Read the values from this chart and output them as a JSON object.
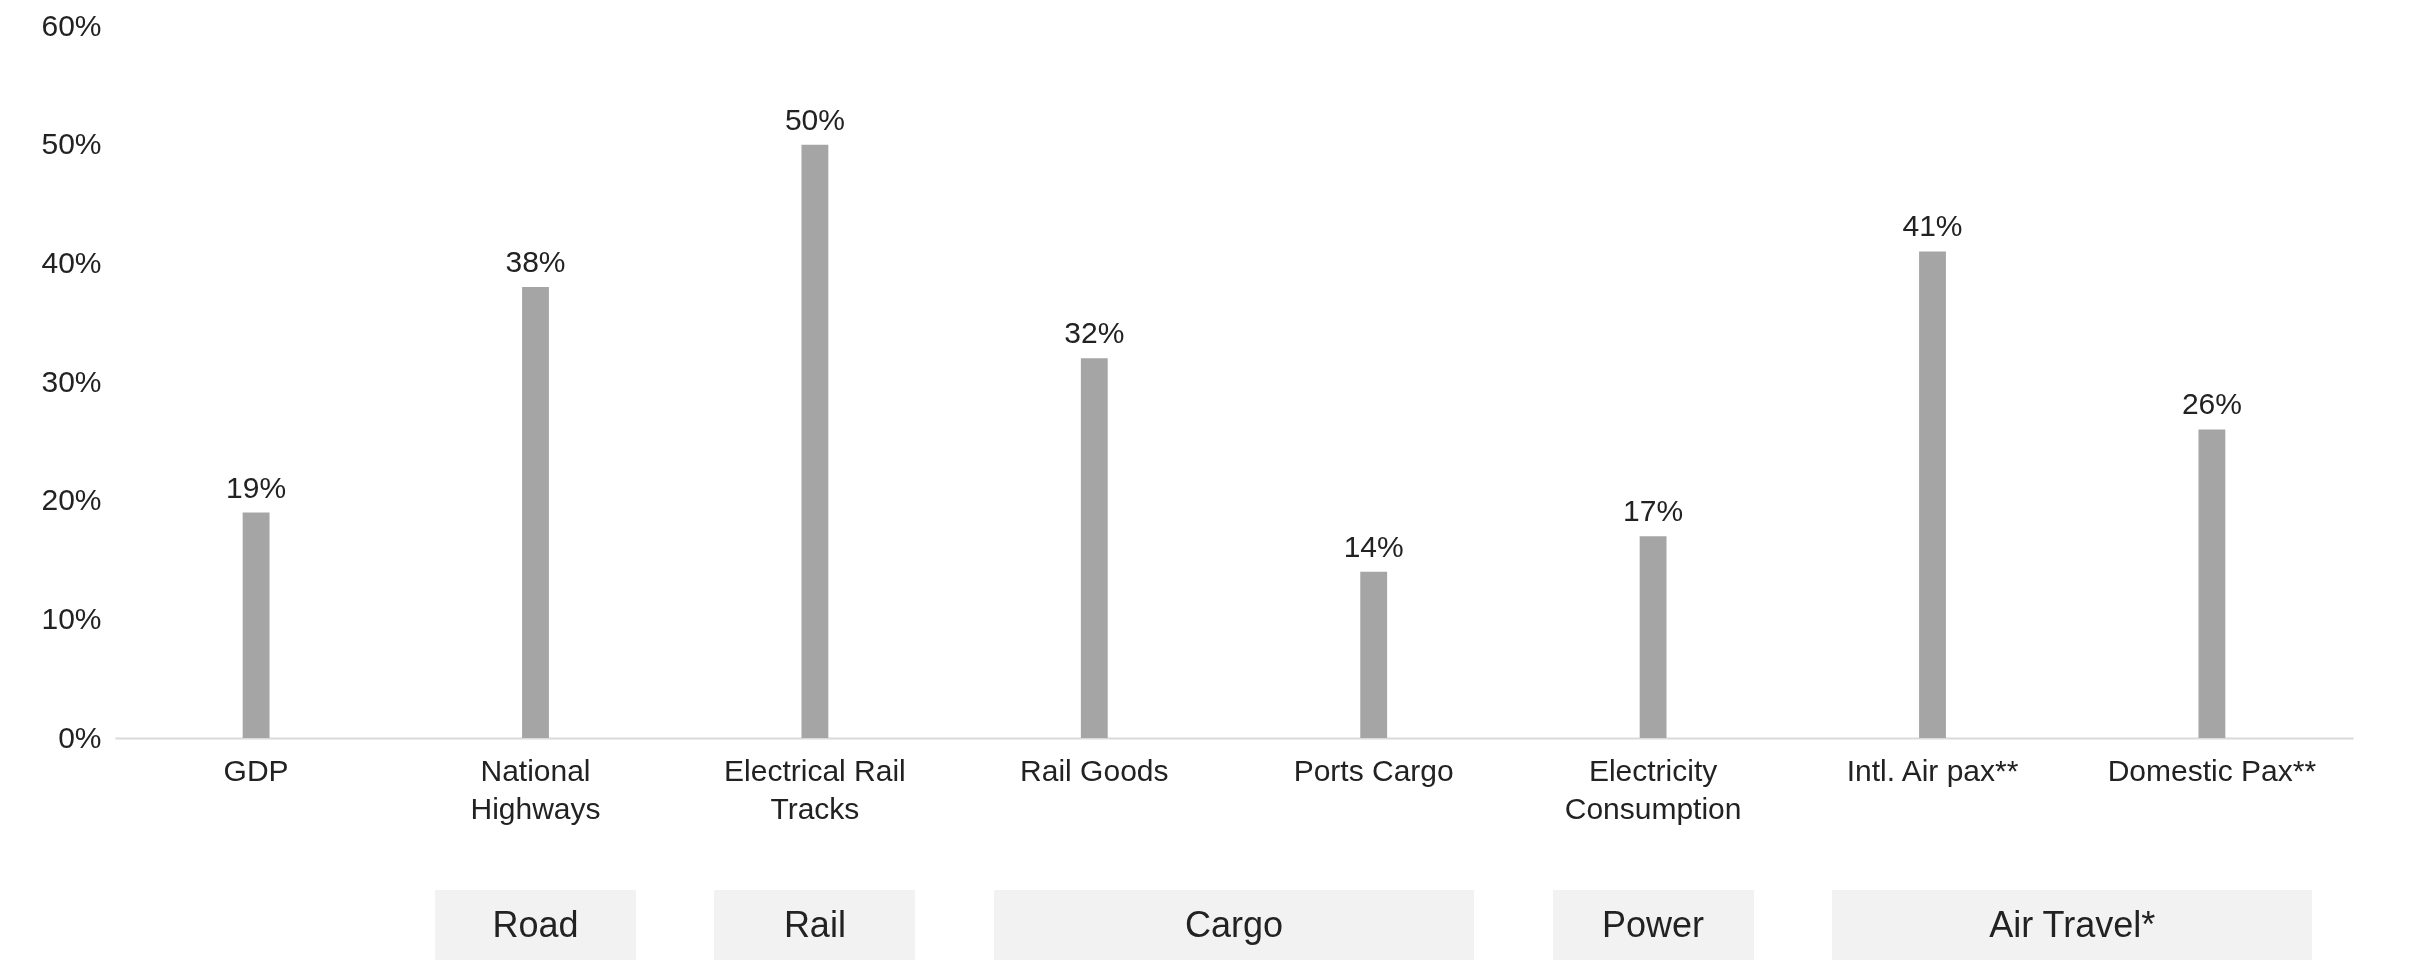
{
  "chart_data": {
    "type": "bar",
    "categories": [
      "GDP",
      "National Highways",
      "Electrical Rail Tracks",
      "Rail Goods",
      "Ports Cargo",
      "Electricity Consumption",
      "Intl. Air pax**",
      "Domestic Pax**"
    ],
    "values": [
      19,
      38,
      50,
      32,
      14,
      17,
      41,
      26
    ],
    "value_labels": [
      "19%",
      "38%",
      "50%",
      "32%",
      "14%",
      "17%",
      "41%",
      "26%"
    ],
    "color": "#a5a5a5",
    "ylim": [
      0,
      60
    ],
    "yticks": [
      {
        "value": 0,
        "label": "0%"
      },
      {
        "value": 10,
        "label": "10%"
      },
      {
        "value": 20,
        "label": "20%"
      },
      {
        "value": 30,
        "label": "30%"
      },
      {
        "value": 40,
        "label": "40%"
      },
      {
        "value": 50,
        "label": "50%"
      },
      {
        "value": 60,
        "label": "60%"
      }
    ],
    "grid": false,
    "annotations": [
      "Road",
      "Rail",
      "Cargo",
      "Power",
      "Air Travel*"
    ]
  }
}
